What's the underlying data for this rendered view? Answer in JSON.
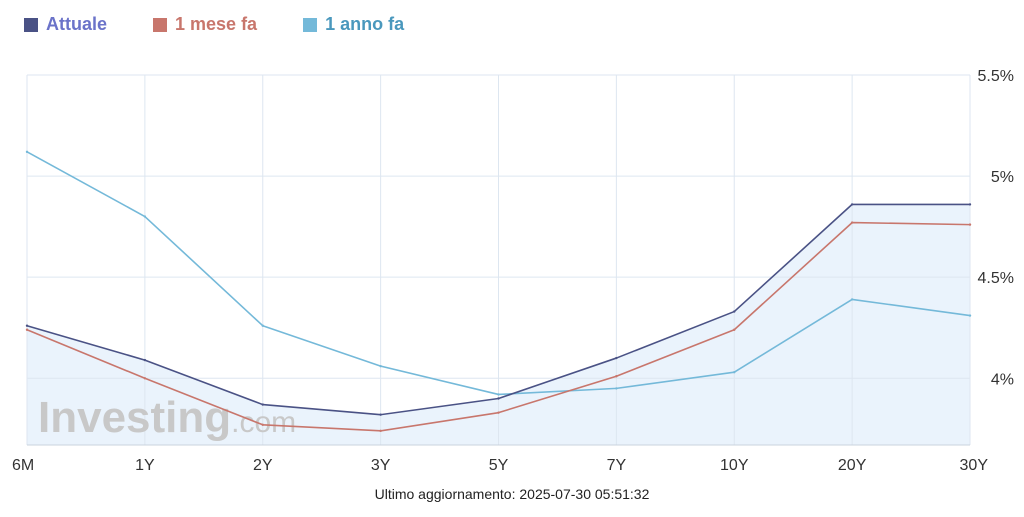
{
  "colors": {
    "attuale": "#4a5285",
    "mese": "#c8766c",
    "anno": "#74b9d9",
    "fill": "#eaf3fc",
    "grid": "#dde6f0",
    "watermark": "#c8c8c8"
  },
  "legend": [
    {
      "name": "Attuale",
      "color": "#4a5285",
      "text_color": "#6b73c9"
    },
    {
      "name": "1 mese fa",
      "color": "#c8766c",
      "text_color": "#c8766c"
    },
    {
      "name": "1 anno fa",
      "color": "#74b9d9",
      "text_color": "#4a98bd"
    }
  ],
  "watermark": {
    "brand": "Investing",
    "suffix": ".com"
  },
  "footer": {
    "label": "Ultimo aggiornamento:",
    "timestamp": "2025-07-30 05:51:32"
  },
  "chart_data": {
    "type": "line",
    "categories": [
      "6M",
      "1Y",
      "2Y",
      "3Y",
      "5Y",
      "7Y",
      "10Y",
      "20Y",
      "30Y"
    ],
    "series": [
      {
        "name": "Attuale",
        "values": [
          4.26,
          4.09,
          3.87,
          3.82,
          3.9,
          4.1,
          4.33,
          4.86,
          4.86
        ]
      },
      {
        "name": "1 mese fa",
        "values": [
          4.24,
          4.0,
          3.77,
          3.74,
          3.83,
          4.01,
          4.24,
          4.77,
          4.76
        ]
      },
      {
        "name": "1 anno fa",
        "values": [
          5.12,
          4.8,
          4.26,
          4.06,
          3.92,
          3.95,
          4.03,
          4.39,
          4.31
        ]
      }
    ],
    "y_ticks": [
      "4%",
      "4.5%",
      "5%",
      "5.5%"
    ],
    "y_tick_values": [
      4.0,
      4.5,
      5.0,
      5.5
    ],
    "ylim": [
      3.67,
      5.5
    ],
    "grid": true,
    "legend_position": "top-left"
  }
}
